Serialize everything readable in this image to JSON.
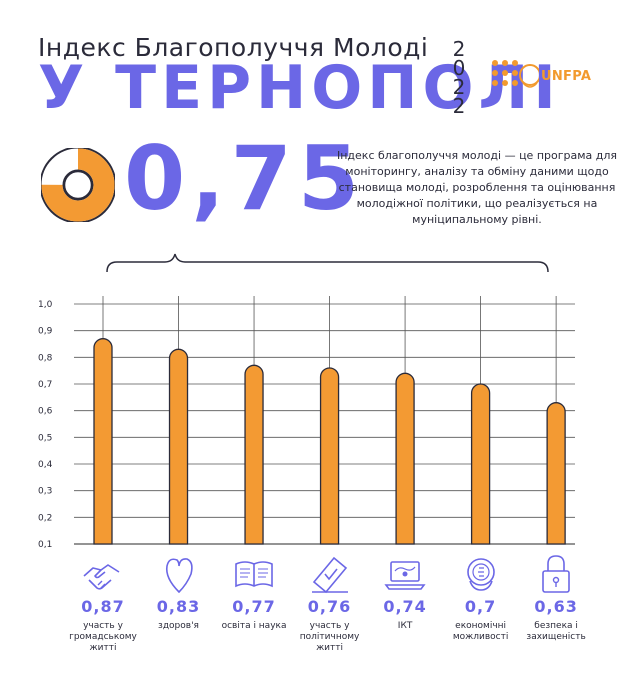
{
  "header": {
    "title_line1": "Індекс Благополуччя Молоді",
    "title_line2": "У ТЕРНОПОЛІ",
    "year_digits": [
      "2",
      "0",
      "2",
      "2"
    ]
  },
  "logo": {
    "text": "UNFPA",
    "icon": "un-emblem-icon"
  },
  "summary": {
    "value": "0,75",
    "description": "Індекс благополуччя молоді — це програма для моніторингу, аналізу та обміну даними щодо становища молоді, розроблення та оцінювання молодіжної політики, що реалізується на муніципальному рівні."
  },
  "colors": {
    "accent": "#6b67e6",
    "bar": "#f39a33",
    "bar_outline": "#2b2b3a",
    "grid": "#555555"
  },
  "chart_data": {
    "type": "bar",
    "categories": [
      "участь у громадському житті",
      "здоров'я",
      "освіта і наука",
      "участь у політичному житті",
      "ІКТ",
      "економічні можливості",
      "безпека і захищеність"
    ],
    "values": [
      0.87,
      0.83,
      0.77,
      0.76,
      0.74,
      0.7,
      0.63
    ],
    "value_labels": [
      "0,87",
      "0,83",
      "0,77",
      "0,76",
      "0,74",
      "0,7",
      "0,63"
    ],
    "ylim": [
      0.1,
      1.0
    ],
    "y_ticks": [
      "0,1",
      "0,2",
      "0,3",
      "0,4",
      "0,5",
      "0,6",
      "0,7",
      "0,8",
      "0,9",
      "1,0"
    ],
    "grid": true,
    "icons": [
      "handshake-icon",
      "heart-icon",
      "open-book-icon",
      "ballot-icon",
      "laptop-icon",
      "coin-icon",
      "padlock-icon"
    ],
    "title": "",
    "xlabel": "",
    "ylabel": ""
  }
}
